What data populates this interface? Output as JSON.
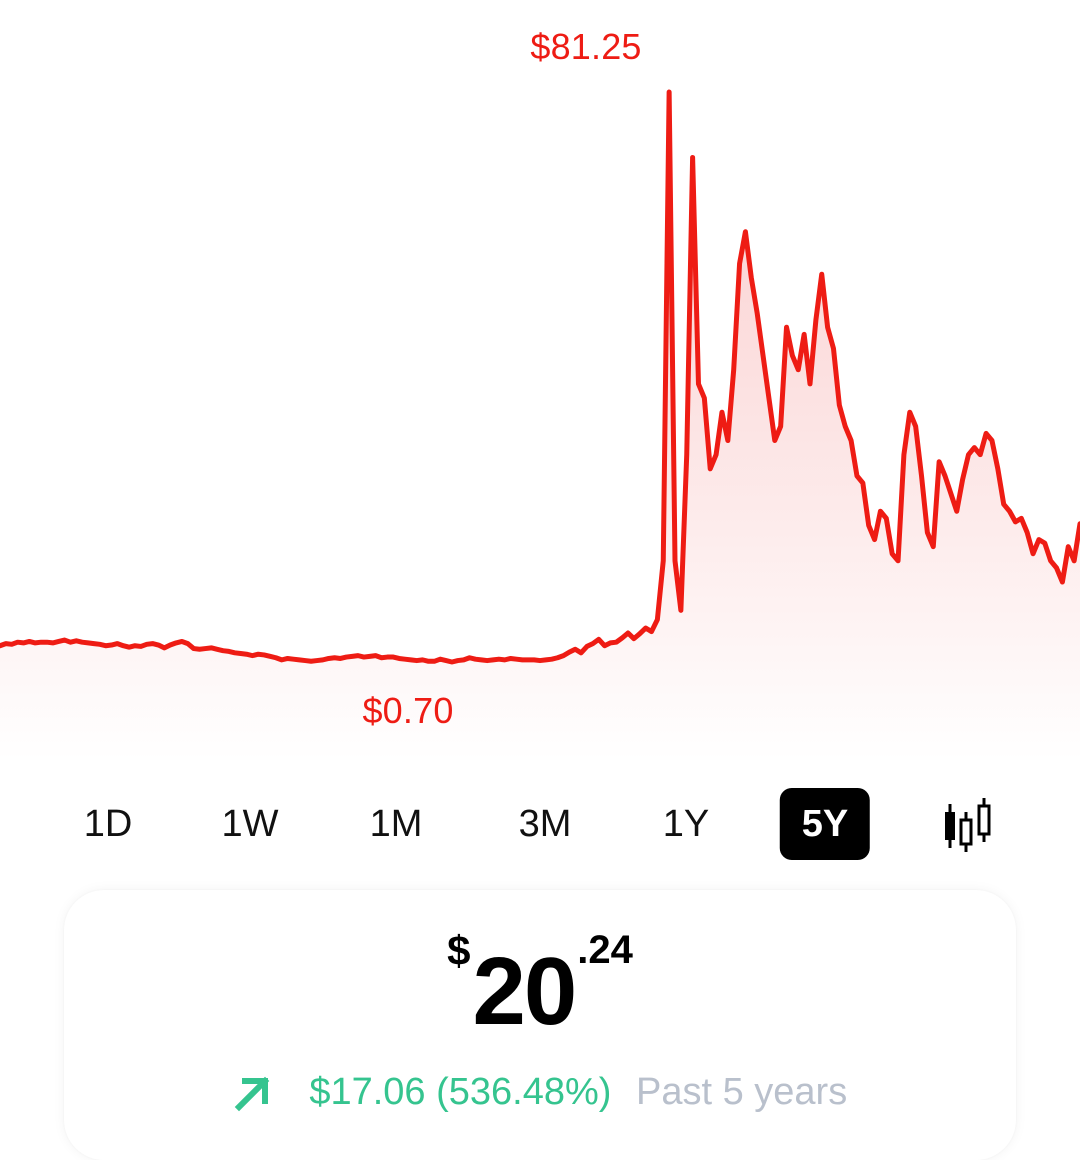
{
  "chart": {
    "high_label": "$81.25",
    "low_label": "$0.70",
    "line_color": "#ee1c14",
    "fill_color": "#f9c5c5"
  },
  "chart_data": {
    "type": "area",
    "y_min": 0.7,
    "y_max": 81.25,
    "start_value": 3.18,
    "end_value": 20.24,
    "values": [
      3.0,
      3.3,
      3.2,
      3.5,
      3.4,
      3.6,
      3.4,
      3.5,
      3.5,
      3.4,
      3.6,
      3.8,
      3.5,
      3.7,
      3.5,
      3.4,
      3.3,
      3.2,
      3.0,
      3.1,
      3.3,
      3.0,
      2.8,
      3.0,
      2.9,
      3.2,
      3.3,
      3.1,
      2.7,
      3.1,
      3.4,
      3.6,
      3.3,
      2.6,
      2.5,
      2.6,
      2.7,
      2.5,
      2.3,
      2.2,
      2.0,
      1.9,
      1.8,
      1.6,
      1.8,
      1.7,
      1.5,
      1.3,
      1.0,
      1.2,
      1.1,
      1.0,
      0.9,
      0.8,
      0.9,
      1.0,
      1.2,
      1.3,
      1.2,
      1.4,
      1.5,
      1.6,
      1.4,
      1.5,
      1.6,
      1.3,
      1.4,
      1.4,
      1.2,
      1.1,
      1.0,
      0.9,
      1.0,
      0.8,
      0.8,
      1.1,
      0.9,
      0.7,
      0.9,
      1.0,
      1.3,
      1.1,
      1.0,
      0.9,
      1.0,
      1.1,
      1.0,
      1.2,
      1.1,
      1.0,
      1.0,
      1.0,
      0.9,
      1.0,
      1.1,
      1.3,
      1.6,
      2.1,
      2.5,
      2.0,
      2.9,
      3.3,
      3.9,
      3.0,
      3.4,
      3.5,
      4.1,
      4.8,
      4.0,
      4.7,
      5.5,
      5.0,
      6.7,
      15.0,
      81.25,
      15.0,
      8.0,
      30.0,
      72.0,
      40.0,
      38.0,
      28.0,
      30.0,
      36.0,
      32.0,
      42.0,
      57.0,
      61.5,
      55.0,
      50.0,
      44.0,
      38.0,
      32.0,
      34.0,
      48.0,
      44.0,
      42.0,
      47.0,
      40.0,
      49.0,
      55.5,
      48.0,
      45.0,
      37.0,
      34.0,
      32.0,
      27.0,
      26.0,
      20.0,
      18.0,
      22.0,
      21.0,
      16.0,
      15.0,
      30.0,
      36.0,
      34.0,
      27.0,
      19.0,
      17.0,
      29.0,
      27.0,
      24.5,
      22.0,
      26.5,
      30.0,
      31.0,
      30.0,
      33.0,
      32.0,
      28.0,
      23.0,
      22.0,
      20.5,
      21.0,
      19.0,
      16.0,
      18.0,
      17.5,
      15.0,
      14.0,
      12.0,
      17.0,
      15.0,
      20.24
    ],
    "series": [
      {
        "values_ref": "values"
      }
    ]
  },
  "ranges": {
    "items": [
      {
        "label": "1D",
        "active": false
      },
      {
        "label": "1W",
        "active": false
      },
      {
        "label": "1M",
        "active": false
      },
      {
        "label": "3M",
        "active": false
      },
      {
        "label": "1Y",
        "active": false
      },
      {
        "label": "5Y",
        "active": true
      }
    ],
    "candlestick_icon": "candlestick-chart-icon"
  },
  "price": {
    "currency_symbol": "$",
    "whole": "20",
    "cents": ".24"
  },
  "change": {
    "arrow_icon": "arrow-up-right-icon",
    "value": "$17.06 (536.48%)",
    "period": "Past 5 years",
    "positive_color": "#35c48f",
    "period_color": "#b9c0cc"
  }
}
